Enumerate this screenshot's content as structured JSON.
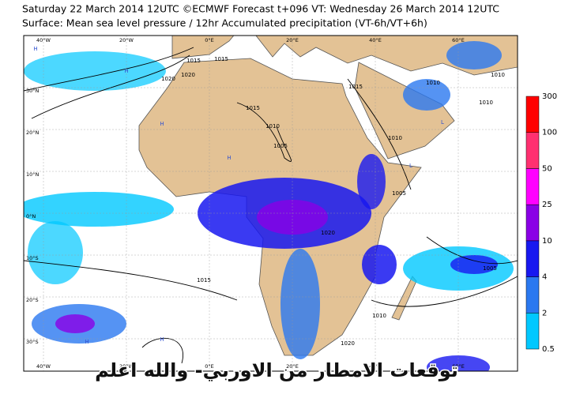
{
  "header": {
    "line1": "Saturday 22 March 2014 12UTC ©ECMWF Forecast t+096 VT: Wednesday 26 March 2014 12UTC",
    "line2": "Surface: Mean sea level pressure / 12hr Accumulated precipitation (VT-6h/VT+6h)"
  },
  "map": {
    "lon_labels": [
      "40°W",
      "20°W",
      "0°E",
      "20°E",
      "40°E",
      "60°E"
    ],
    "lat_labels": [
      "30°N",
      "20°N",
      "10°N",
      "0°N",
      "10°S",
      "20°S",
      "30°S"
    ],
    "isobar_labels": [
      "1015",
      "1015",
      "1020",
      "1020",
      "1015",
      "1010",
      "1005",
      "1015",
      "1010",
      "1005",
      "1020",
      "1015",
      "1010",
      "1020",
      "1005",
      "1010",
      "1010",
      "1010"
    ],
    "pressure_centers": [
      "H",
      "H",
      "H",
      "H",
      "L",
      "H",
      "H",
      "L"
    ]
  },
  "colorbar": {
    "levels": [
      0.5,
      2,
      4,
      10,
      25,
      50,
      100,
      300
    ],
    "colors": [
      "#00c8ff",
      "#2a78f0",
      "#1818f0",
      "#8a00e6",
      "#ff00ff",
      "#ff3070",
      "#ff0000"
    ]
  },
  "caption": "توقعات الامطار من الاوربي- والله اعلم"
}
